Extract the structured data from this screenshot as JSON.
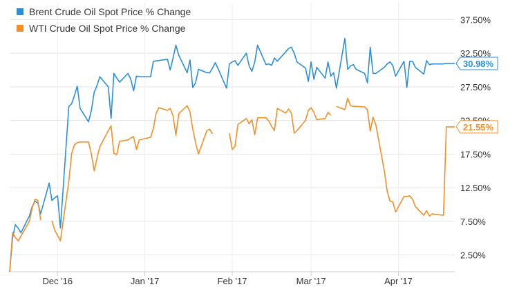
{
  "chart_data": {
    "type": "line",
    "title": "",
    "xlabel": "",
    "ylabel": "",
    "x_ticks": [
      "Dec '16",
      "Jan '17",
      "Feb '17",
      "Mar '17",
      "Apr '17"
    ],
    "y_ticks": [
      "2.50%",
      "7.50%",
      "12.50%",
      "17.50%",
      "22.50%",
      "27.50%",
      "32.50%",
      "37.50%"
    ],
    "y_tick_values": [
      2.5,
      7.5,
      12.5,
      17.5,
      22.5,
      27.5,
      32.5,
      37.5
    ],
    "ylim": [
      0,
      40
    ],
    "x_range": [
      "2016-11-14",
      "2017-04-21"
    ],
    "grid": true,
    "legend_placement": "top-left",
    "series": [
      {
        "name": "Brent Crude Oil Spot Price % Change",
        "color": "#2b8fd8",
        "last_label": "30.98%",
        "points": [
          [
            "2016-11-14",
            0.0
          ],
          [
            "2016-11-15",
            5.0
          ],
          [
            "2016-11-16",
            7.0
          ],
          [
            "2016-11-17",
            6.5
          ],
          [
            "2016-11-18",
            5.8
          ],
          [
            "2016-11-21",
            8.3
          ],
          [
            "2016-11-22",
            9.7
          ],
          [
            "2016-11-23",
            10.5
          ],
          [
            "2016-11-24",
            10.2
          ],
          [
            "2016-11-25",
            8.6
          ],
          [
            "2016-11-28",
            13.2
          ],
          [
            "2016-11-29",
            10.6
          ],
          [
            "2016-11-30",
            11.0
          ],
          [
            "2016-12-01",
            11.3
          ],
          [
            "2016-12-02",
            6.5
          ],
          [
            "2016-12-05",
            24.6
          ],
          [
            "2016-12-06",
            25.0
          ],
          [
            "2016-12-07",
            26.2
          ],
          [
            "2016-12-08",
            27.6
          ],
          [
            "2016-12-09",
            24.3
          ],
          [
            "2016-12-12",
            22.3
          ],
          [
            "2016-12-13",
            24.0
          ],
          [
            "2016-12-14",
            26.7
          ],
          [
            "2016-12-15",
            27.7
          ],
          [
            "2016-12-16",
            29.0
          ],
          [
            "2016-12-19",
            27.5
          ],
          [
            "2016-12-20",
            22.8
          ],
          [
            "2016-12-21",
            29.5
          ],
          [
            "2016-12-22",
            28.8
          ],
          [
            "2016-12-23",
            28.2
          ],
          [
            "2016-12-26",
            29.5
          ],
          [
            "2016-12-27",
            28.6
          ],
          [
            "2016-12-28",
            26.9
          ],
          [
            "2016-12-29",
            29.1
          ],
          [
            "2016-12-30",
            29.0
          ],
          [
            "2017-01-03",
            29.0
          ],
          [
            "2017-01-04",
            31.3
          ],
          [
            "2017-01-09",
            31.6
          ],
          [
            "2017-01-10",
            30.0
          ],
          [
            "2017-01-11",
            31.8
          ],
          [
            "2017-01-12",
            33.7
          ],
          [
            "2017-01-13",
            32.2
          ],
          [
            "2017-01-16",
            29.6
          ],
          [
            "2017-01-17",
            31.5
          ],
          [
            "2017-01-18",
            27.4
          ],
          [
            "2017-01-19",
            28.1
          ],
          [
            "2017-01-20",
            30.1
          ],
          [
            "2017-01-23",
            29.6
          ],
          [
            "2017-01-24",
            29.6
          ],
          [
            "2017-01-25",
            30.3
          ],
          [
            "2017-01-26",
            31.1
          ],
          [
            "2017-01-27",
            30.2
          ],
          [
            "2017-01-30",
            27.3
          ],
          [
            "2017-01-31",
            30.9
          ],
          [
            "2017-02-01",
            31.2
          ],
          [
            "2017-02-02",
            31.4
          ],
          [
            "2017-02-03",
            30.7
          ],
          [
            "2017-02-06",
            32.5
          ],
          [
            "2017-02-07",
            30.6
          ],
          [
            "2017-02-08",
            29.8
          ],
          [
            "2017-02-09",
            31.2
          ],
          [
            "2017-02-10",
            33.7
          ],
          [
            "2017-02-13",
            30.8
          ],
          [
            "2017-02-14",
            30.9
          ],
          [
            "2017-02-15",
            30.7
          ],
          [
            "2017-02-16",
            31.8
          ],
          [
            "2017-02-17",
            31.3
          ],
          [
            "2017-02-20",
            32.7
          ],
          [
            "2017-02-21",
            33.2
          ],
          [
            "2017-02-22",
            33.4
          ],
          [
            "2017-02-23",
            32.5
          ],
          [
            "2017-02-24",
            31.2
          ],
          [
            "2017-02-27",
            30.3
          ],
          [
            "2017-02-28",
            28.3
          ],
          [
            "2017-03-01",
            31.2
          ],
          [
            "2017-03-02",
            28.6
          ],
          [
            "2017-03-03",
            30.4
          ],
          [
            "2017-03-06",
            28.8
          ],
          [
            "2017-03-07",
            31.2
          ],
          [
            "2017-03-08",
            29.1
          ],
          [
            "2017-03-09",
            29.6
          ],
          [
            "2017-03-10",
            27.3
          ],
          [
            "2017-03-13",
            34.7
          ],
          [
            "2017-03-14",
            30.1
          ],
          [
            "2017-03-15",
            30.6
          ],
          [
            "2017-03-16",
            30.8
          ],
          [
            "2017-03-17",
            30.1
          ],
          [
            "2017-03-20",
            29.5
          ],
          [
            "2017-03-21",
            28.1
          ],
          [
            "2017-03-22",
            33.4
          ],
          [
            "2017-03-23",
            29.5
          ],
          [
            "2017-03-24",
            29.5
          ],
          [
            "2017-03-27",
            30.4
          ],
          [
            "2017-03-28",
            30.9
          ],
          [
            "2017-03-29",
            31.2
          ],
          [
            "2017-03-30",
            30.7
          ],
          [
            "2017-03-31",
            29.1
          ],
          [
            "2017-04-03",
            31.3
          ],
          [
            "2017-04-04",
            27.4
          ],
          [
            "2017-04-05",
            31.3
          ],
          [
            "2017-04-06",
            31.3
          ],
          [
            "2017-04-07",
            30.4
          ],
          [
            "2017-04-10",
            29.4
          ],
          [
            "2017-04-11",
            31.4
          ],
          [
            "2017-04-12",
            30.8
          ],
          [
            "2017-04-13",
            30.9
          ],
          [
            "2017-04-17",
            30.9
          ],
          [
            "2017-04-18",
            31.0
          ],
          [
            "2017-04-19",
            31.0
          ],
          [
            "2017-04-20",
            31.0
          ],
          [
            "2017-04-21",
            30.98
          ]
        ]
      },
      {
        "name": "WTI Crude Oil Spot Price % Change",
        "color": "#f28f27",
        "last_label": "21.55%",
        "points": [
          [
            "2016-11-14",
            0.0
          ],
          [
            "2016-11-15",
            5.8
          ],
          [
            "2016-11-16",
            5.1
          ],
          [
            "2016-11-17",
            4.6
          ],
          [
            "2016-11-18",
            5.3
          ],
          [
            "2016-11-21",
            7.5
          ],
          [
            "2016-11-22",
            9.5
          ],
          [
            "2016-11-23",
            10.8
          ],
          [
            "2016-11-24",
            10.6
          ],
          [
            "2016-11-25",
            7.7
          ],
          [
            "2016-11-28",
            null
          ],
          [
            "2016-11-29",
            7.6
          ],
          [
            "2016-11-30",
            6.2
          ],
          [
            "2016-12-01",
            5.4
          ],
          [
            "2016-12-02",
            4.6
          ],
          [
            "2016-12-05",
            13.5
          ],
          [
            "2016-12-06",
            17.6
          ],
          [
            "2016-12-07",
            18.9
          ],
          [
            "2016-12-08",
            19.2
          ],
          [
            "2016-12-09",
            19.3
          ],
          [
            "2016-12-12",
            19.3
          ],
          [
            "2016-12-13",
            17.5
          ],
          [
            "2016-12-14",
            15.0
          ],
          [
            "2016-12-15",
            16.9
          ],
          [
            "2016-12-16",
            18.6
          ],
          [
            "2016-12-19",
            21.0
          ],
          [
            "2016-12-20",
            21.7
          ],
          [
            "2016-12-21",
            17.6
          ],
          [
            "2016-12-22",
            17.4
          ],
          [
            "2016-12-23",
            19.4
          ],
          [
            "2016-12-26",
            19.6
          ],
          [
            "2016-12-27",
            19.9
          ],
          [
            "2016-12-28",
            20.1
          ],
          [
            "2016-12-29",
            18.2
          ],
          [
            "2016-12-30",
            19.6
          ],
          [
            "2017-01-03",
            20.0
          ],
          [
            "2017-01-04",
            21.3
          ],
          [
            "2017-01-05",
            23.6
          ],
          [
            "2017-01-06",
            24.4
          ],
          [
            "2017-01-09",
            24.0
          ],
          [
            "2017-01-10",
            24.3
          ],
          [
            "2017-01-11",
            23.2
          ],
          [
            "2017-01-12",
            20.3
          ],
          [
            "2017-01-13",
            23.5
          ],
          [
            "2017-01-16",
            24.7
          ],
          [
            "2017-01-17",
            23.8
          ],
          [
            "2017-01-18",
            21.2
          ],
          [
            "2017-01-19",
            19.2
          ],
          [
            "2017-01-20",
            17.5
          ],
          [
            "2017-01-23",
            21.0
          ],
          [
            "2017-01-24",
            21.2
          ],
          [
            "2017-01-25",
            20.5
          ],
          [
            "2017-01-26",
            null
          ],
          [
            "2017-01-27",
            null
          ],
          [
            "2017-01-30",
            null
          ],
          [
            "2017-01-31",
            20.6
          ],
          [
            "2017-02-01",
            18.2
          ],
          [
            "2017-02-02",
            18.7
          ],
          [
            "2017-02-03",
            21.9
          ],
          [
            "2017-02-06",
            22.8
          ],
          [
            "2017-02-07",
            22.0
          ],
          [
            "2017-02-08",
            22.6
          ],
          [
            "2017-02-09",
            20.4
          ],
          [
            "2017-02-10",
            22.9
          ],
          [
            "2017-02-13",
            22.9
          ],
          [
            "2017-02-14",
            22.4
          ],
          [
            "2017-02-15",
            21.6
          ],
          [
            "2017-02-16",
            21.0
          ],
          [
            "2017-02-17",
            24.3
          ],
          [
            "2017-02-20",
            23.6
          ],
          [
            "2017-02-21",
            24.2
          ],
          [
            "2017-02-22",
            23.6
          ],
          [
            "2017-02-23",
            20.6
          ],
          [
            "2017-02-24",
            21.0
          ],
          [
            "2017-02-27",
            22.5
          ],
          [
            "2017-02-28",
            24.0
          ],
          [
            "2017-03-01",
            24.4
          ],
          [
            "2017-03-02",
            23.7
          ],
          [
            "2017-03-03",
            22.6
          ],
          [
            "2017-03-06",
            22.8
          ],
          [
            "2017-03-07",
            23.7
          ],
          [
            "2017-03-08",
            23.3
          ],
          [
            "2017-03-09",
            null
          ],
          [
            "2017-03-10",
            24.6
          ],
          [
            "2017-03-13",
            24.1
          ],
          [
            "2017-03-14",
            25.8
          ],
          [
            "2017-03-15",
            24.7
          ],
          [
            "2017-03-16",
            24.6
          ],
          [
            "2017-03-17",
            24.6
          ],
          [
            "2017-03-20",
            24.5
          ],
          [
            "2017-03-21",
            24.1
          ],
          [
            "2017-03-22",
            20.9
          ],
          [
            "2017-03-23",
            23.0
          ],
          [
            "2017-03-24",
            21.8
          ],
          [
            "2017-03-27",
            15.0
          ],
          [
            "2017-03-28",
            12.0
          ],
          [
            "2017-03-29",
            10.5
          ],
          [
            "2017-03-30",
            10.4
          ],
          [
            "2017-03-31",
            8.9
          ],
          [
            "2017-04-03",
            11.2
          ],
          [
            "2017-04-04",
            11.2
          ],
          [
            "2017-04-05",
            11.3
          ],
          [
            "2017-04-06",
            10.8
          ],
          [
            "2017-04-07",
            9.7
          ],
          [
            "2017-04-10",
            8.4
          ],
          [
            "2017-04-11",
            9.1
          ],
          [
            "2017-04-12",
            8.3
          ],
          [
            "2017-04-13",
            8.6
          ],
          [
            "2017-04-17",
            8.4
          ],
          [
            "2017-04-18",
            21.55
          ],
          [
            "2017-04-19",
            21.55
          ],
          [
            "2017-04-20",
            21.55
          ],
          [
            "2017-04-21",
            21.55
          ]
        ]
      }
    ]
  }
}
